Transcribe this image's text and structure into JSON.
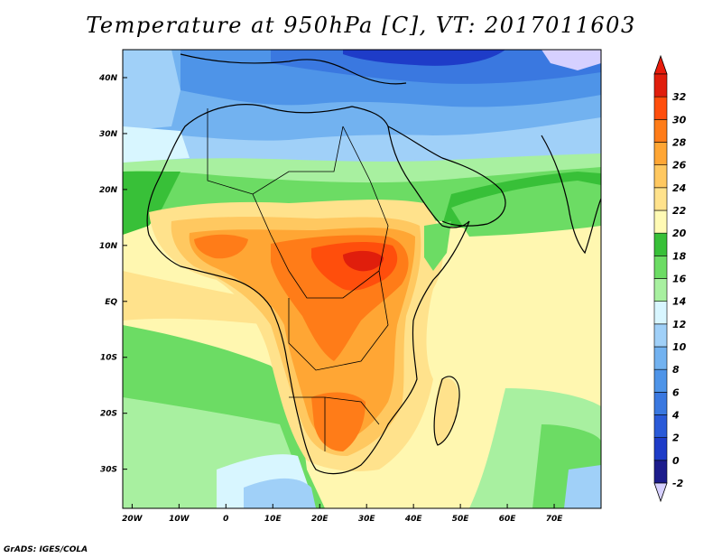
{
  "title": "Temperature at 950hPa [C], VT: 2017011603",
  "credit": "GrADS: IGES/COLA",
  "map": {
    "lon_labels": [
      "20W",
      "10W",
      "0",
      "10E",
      "20E",
      "30E",
      "40E",
      "50E",
      "60E",
      "70E"
    ],
    "lat_labels": [
      "40N",
      "30N",
      "20N",
      "10N",
      "EQ",
      "10S",
      "20S",
      "30S"
    ],
    "extent": {
      "lon_min": -22,
      "lon_max": 80,
      "lat_min": -37,
      "lat_max": 45
    }
  },
  "colorbar": {
    "labels": [
      "-2",
      "0",
      "2",
      "4",
      "6",
      "8",
      "10",
      "12",
      "14",
      "16",
      "18",
      "20",
      "22",
      "24",
      "26",
      "28",
      "30",
      "32"
    ],
    "colors": [
      "#1c1c8c",
      "#1e3cc8",
      "#2a5ad8",
      "#3a78e0",
      "#4e94e8",
      "#72b2f0",
      "#a0d0f8",
      "#d8f6ff",
      "#a8f0a0",
      "#6cdc64",
      "#38c038",
      "#fffab4",
      "#ffe28c",
      "#ffc860",
      "#ffa634",
      "#ff7c18",
      "#ff4e0c",
      "#e01e0c"
    ],
    "low_cap_color": "#d6d0ff",
    "high_cap_color": "#e81c0c"
  }
}
